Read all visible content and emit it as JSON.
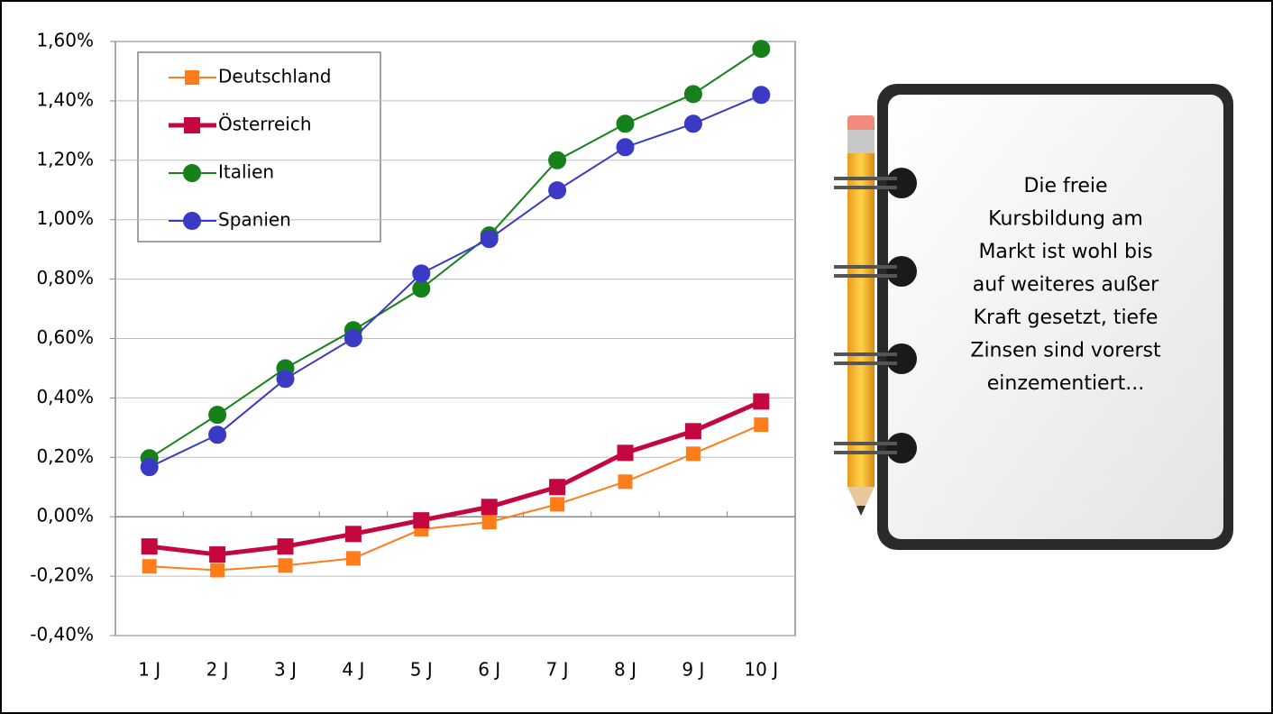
{
  "chart_data": {
    "type": "line",
    "categories": [
      "1 J",
      "2 J",
      "3 J",
      "4 J",
      "5 J",
      "6 J",
      "7 J",
      "8 J",
      "9 J",
      "10 J"
    ],
    "series": [
      {
        "name": "Deutschland",
        "color": "#ff7c1a",
        "marker": "square",
        "width": 2,
        "values": [
          -0.167,
          -0.18,
          -0.164,
          -0.14,
          -0.042,
          -0.018,
          0.042,
          0.118,
          0.212,
          0.31
        ]
      },
      {
        "name": "Österreich",
        "color": "#c4073f",
        "marker": "square",
        "width": 5,
        "values": [
          -0.1,
          -0.127,
          -0.1,
          -0.058,
          -0.012,
          0.033,
          0.1,
          0.215,
          0.288,
          0.388
        ]
      },
      {
        "name": "Italien",
        "color": "#16801a",
        "marker": "circle",
        "width": 2,
        "values": [
          0.197,
          0.343,
          0.5,
          0.628,
          0.768,
          0.947,
          1.2,
          1.323,
          1.423,
          1.575
        ]
      },
      {
        "name": "Spanien",
        "color": "#3a3ac4",
        "marker": "circle",
        "width": 2,
        "values": [
          0.167,
          0.276,
          0.464,
          0.601,
          0.819,
          0.935,
          1.099,
          1.244,
          1.323,
          1.42
        ]
      }
    ],
    "ylim": [
      -0.4,
      1.6
    ],
    "yticks": [
      {
        "value": -0.4,
        "label": "-0,40%"
      },
      {
        "value": -0.2,
        "label": "-0,20%"
      },
      {
        "value": 0,
        "label": "0,00%"
      },
      {
        "value": 0.2,
        "label": "0,20%"
      },
      {
        "value": 0.4,
        "label": "0,40%"
      },
      {
        "value": 0.6,
        "label": "0,60%"
      },
      {
        "value": 0.8,
        "label": "0,80%"
      },
      {
        "value": 1.0,
        "label": "1,00%"
      },
      {
        "value": 1.2,
        "label": "1,20%"
      },
      {
        "value": 1.4,
        "label": "1,40%"
      },
      {
        "value": 1.6,
        "label": "1,60%"
      }
    ],
    "grid": true,
    "legend": "top-left",
    "note": [
      "Die freie",
      "Kursbildung am",
      "Markt ist wohl bis",
      "auf weiteres außer",
      "Kraft gesetzt, tiefe",
      "Zinsen sind vorerst",
      "einzementiert..."
    ]
  }
}
